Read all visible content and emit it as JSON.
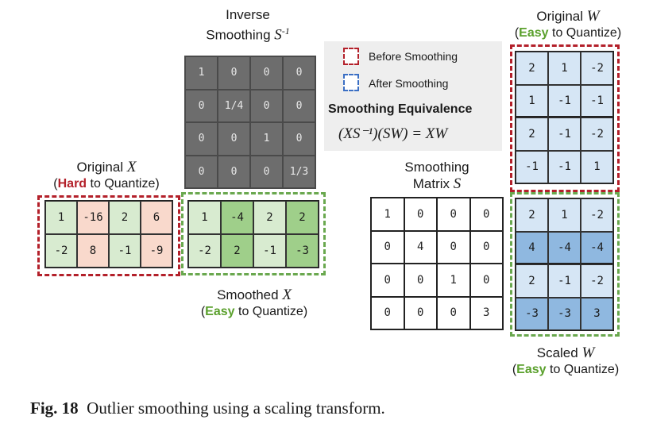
{
  "inverse_smoothing": {
    "title_line1": "Inverse",
    "title_line2": "Smoothing ",
    "symbol": "S",
    "superscript": "-1",
    "matrix": [
      [
        "1",
        "0",
        "0",
        "0"
      ],
      [
        "0",
        "1/4",
        "0",
        "0"
      ],
      [
        "0",
        "0",
        "1",
        "0"
      ],
      [
        "0",
        "0",
        "0",
        "1/3"
      ]
    ]
  },
  "legend": {
    "before_label": "Before Smoothing",
    "after_label": "After Smoothing",
    "before_color": "#b3202a",
    "after_color": "#3b6fc4",
    "equivalence_title": "Smoothing Equivalence",
    "equation": "(XS⁻¹)(SW) = XW"
  },
  "original_x": {
    "title": "Original ",
    "symbol": "X",
    "paren_open": "(",
    "difficulty": "Hard",
    "suffix": " to Quantize)",
    "matrix": [
      [
        "1",
        "-16",
        "2",
        "6"
      ],
      [
        "-2",
        "8",
        "-1",
        "-9"
      ]
    ],
    "cell_colors": [
      [
        "#d8ebd0",
        "#f9d9cc",
        "#d8ebd0",
        "#f9d9cc"
      ],
      [
        "#d8ebd0",
        "#f9d9cc",
        "#d8ebd0",
        "#f9d9cc"
      ]
    ]
  },
  "smoothed_x": {
    "title": "Smoothed ",
    "symbol": "X",
    "paren_open": "(",
    "difficulty": "Easy",
    "suffix": " to Quantize)",
    "matrix": [
      [
        "1",
        "-4",
        "2",
        "2"
      ],
      [
        "-2",
        "2",
        "-1",
        "-3"
      ]
    ],
    "cell_colors": [
      [
        "#d8ebd0",
        "#9fcf8a",
        "#d8ebd0",
        "#9fcf8a"
      ],
      [
        "#d8ebd0",
        "#9fcf8a",
        "#d8ebd0",
        "#9fcf8a"
      ]
    ]
  },
  "smoothing_matrix": {
    "title_line1": "Smoothing",
    "title_line2": "Matrix ",
    "symbol": "S",
    "matrix": [
      [
        "1",
        "0",
        "0",
        "0"
      ],
      [
        "0",
        "4",
        "0",
        "0"
      ],
      [
        "0",
        "0",
        "1",
        "0"
      ],
      [
        "0",
        "0",
        "0",
        "3"
      ]
    ]
  },
  "original_w": {
    "title": "Original ",
    "symbol": "W",
    "paren_open": "(",
    "difficulty": "Easy",
    "suffix": " to Quantize)",
    "matrix": [
      [
        "2",
        "1",
        "-2"
      ],
      [
        "1",
        "-1",
        "-1"
      ],
      [
        "2",
        "-1",
        "-2"
      ],
      [
        "-1",
        "-1",
        "1"
      ]
    ],
    "cell_colors": [
      [
        "#d6e6f5",
        "#d6e6f5",
        "#d6e6f5"
      ],
      [
        "#d6e6f5",
        "#d6e6f5",
        "#d6e6f5"
      ],
      [
        "#d6e6f5",
        "#d6e6f5",
        "#d6e6f5"
      ],
      [
        "#d6e6f5",
        "#d6e6f5",
        "#d6e6f5"
      ]
    ]
  },
  "scaled_w": {
    "title": "Scaled ",
    "symbol": "W",
    "paren_open": "(",
    "difficulty": "Easy",
    "suffix": " to Quantize)",
    "matrix": [
      [
        "2",
        "1",
        "-2"
      ],
      [
        "4",
        "-4",
        "-4"
      ],
      [
        "2",
        "-1",
        "-2"
      ],
      [
        "-3",
        "-3",
        "3"
      ]
    ],
    "cell_colors": [
      [
        "#d6e6f5",
        "#d6e6f5",
        "#d6e6f5"
      ],
      [
        "#8fb8e0",
        "#8fb8e0",
        "#8fb8e0"
      ],
      [
        "#d6e6f5",
        "#d6e6f5",
        "#d6e6f5"
      ],
      [
        "#8fb8e0",
        "#8fb8e0",
        "#8fb8e0"
      ]
    ]
  },
  "caption": {
    "fig_label": "Fig. 18",
    "text": "Outlier smoothing using a scaling transform."
  }
}
